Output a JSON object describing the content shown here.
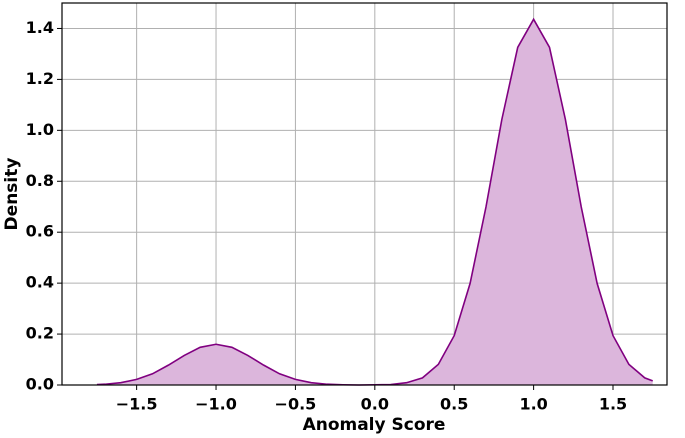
{
  "chart_data": {
    "type": "density",
    "x_label": "Anomaly Score",
    "y_label": "Density",
    "x": [
      -1.75,
      -1.7,
      -1.6,
      -1.5,
      -1.4,
      -1.3,
      -1.2,
      -1.1,
      -1.0,
      -0.9,
      -0.8,
      -0.7,
      -0.6,
      -0.5,
      -0.4,
      -0.3,
      -0.2,
      -0.1,
      0.0,
      0.1,
      0.2,
      0.3,
      0.4,
      0.5,
      0.6,
      0.7,
      0.8,
      0.9,
      1.0,
      1.1,
      1.2,
      1.3,
      1.4,
      1.5,
      1.6,
      1.7,
      1.75
    ],
    "series": [
      {
        "color": "#800080",
        "fill": "#dcb6dc",
        "values": [
          0.002,
          0.003,
          0.009,
          0.022,
          0.044,
          0.078,
          0.116,
          0.148,
          0.16,
          0.148,
          0.116,
          0.078,
          0.044,
          0.022,
          0.009,
          0.003,
          0.001,
          0.0,
          0.001,
          0.002,
          0.009,
          0.028,
          0.081,
          0.194,
          0.399,
          0.699,
          1.043,
          1.326,
          1.436,
          1.326,
          1.043,
          0.699,
          0.399,
          0.194,
          0.081,
          0.028,
          0.016
        ]
      }
    ],
    "xlim": [
      -1.97,
      1.84
    ],
    "ylim": [
      0,
      1.5
    ],
    "xticks": [
      {
        "value": -1.5,
        "label": "−1.5"
      },
      {
        "value": -1.0,
        "label": "−1.0"
      },
      {
        "value": -0.5,
        "label": "−0.5"
      },
      {
        "value": 0,
        "label": "0.0"
      },
      0.5,
      {
        "value": 1,
        "label": "1.0"
      },
      1.5
    ],
    "yticks": [
      {
        "value": 0,
        "label": "0.0"
      },
      0.2,
      0.4,
      0.6,
      0.8,
      {
        "value": 1,
        "label": "1.0"
      },
      1.2,
      1.4
    ],
    "grid": true
  }
}
